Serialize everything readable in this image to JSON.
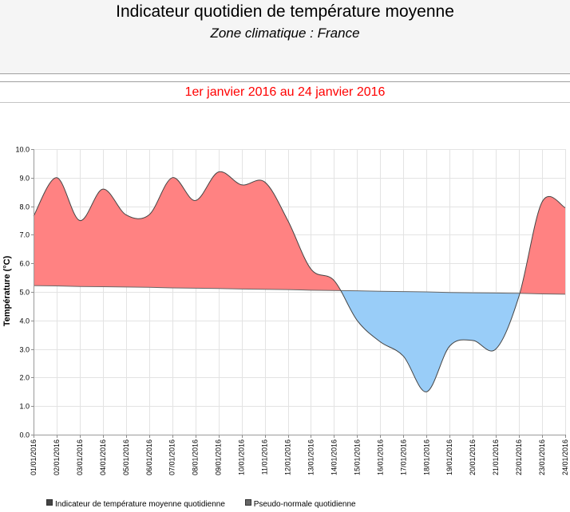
{
  "header": {
    "period": "1er janvier 2016 au 24 janvier 2016"
  },
  "colors": {
    "header_bg": "#f5f5f5",
    "period_text": "#ff0000",
    "above_normal": "#ff8282",
    "below_normal": "#99cdf8",
    "grid": "#e3e3e3",
    "axis": "#9a9a9a"
  },
  "chart_data": {
    "type": "area",
    "title": "Indicateur quotidien de température moyenne",
    "subtitle": "Zone climatique : France",
    "xlabel": "",
    "ylabel": "Température (°C)",
    "ylim": [
      0,
      10
    ],
    "yticks": [
      "0.0",
      "1.0",
      "2.0",
      "3.0",
      "4.0",
      "5.0",
      "6.0",
      "7.0",
      "8.0",
      "9.0",
      "10.0"
    ],
    "x": [
      "01/01/2016",
      "02/01/2016",
      "03/01/2016",
      "04/01/2016",
      "05/01/2016",
      "06/01/2016",
      "07/01/2016",
      "08/01/2016",
      "09/01/2016",
      "10/01/2016",
      "11/01/2016",
      "12/01/2016",
      "13/01/2016",
      "14/01/2016",
      "15/01/2016",
      "16/01/2016",
      "17/01/2016",
      "18/01/2016",
      "19/01/2016",
      "20/01/2016",
      "21/01/2016",
      "22/01/2016",
      "23/01/2016",
      "24/01/2016"
    ],
    "series": [
      {
        "name": "Indicateur de température moyenne quotidienne",
        "color": "#444444",
        "values": [
          7.65,
          9.0,
          7.5,
          8.6,
          7.7,
          7.7,
          9.0,
          8.2,
          9.2,
          8.75,
          8.85,
          7.5,
          5.8,
          5.4,
          4.0,
          3.25,
          2.75,
          1.5,
          3.1,
          3.3,
          3.0,
          4.85,
          8.15,
          7.95
        ]
      },
      {
        "name": "Pseudo-normale quotidienne",
        "color": "#666666",
        "values": [
          5.22,
          5.21,
          5.19,
          5.18,
          5.17,
          5.16,
          5.14,
          5.13,
          5.12,
          5.1,
          5.09,
          5.08,
          5.06,
          5.05,
          5.04,
          5.02,
          5.01,
          5.0,
          4.98,
          4.97,
          4.96,
          4.95,
          4.93,
          4.92
        ]
      }
    ],
    "grid": true,
    "legend": "bottom-left"
  }
}
